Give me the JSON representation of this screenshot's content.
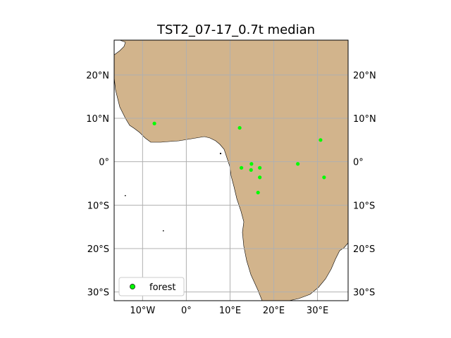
{
  "title": "TST2_07-17_0.7t median",
  "map": {
    "lon_range": [
      -16.5,
      37
    ],
    "lat_range": [
      -32,
      28
    ],
    "lon_ticks": [
      -10,
      0,
      10,
      20,
      30
    ],
    "lat_ticks": [
      20,
      10,
      0,
      -10,
      -20,
      -30
    ],
    "lon_tick_labels": [
      "10°W",
      "0°",
      "10°E",
      "20°E",
      "30°E"
    ],
    "lat_tick_labels": [
      "20°N",
      "10°N",
      "0°",
      "10°S",
      "20°S",
      "30°S"
    ],
    "land_color": "#d2b48c",
    "gridlines": true
  },
  "chart_data": {
    "type": "scatter",
    "series": [
      {
        "name": "forest",
        "color": "#00ff00",
        "points": [
          {
            "lon": -7.3,
            "lat": 8.8
          },
          {
            "lon": 12.2,
            "lat": 7.8
          },
          {
            "lon": 30.7,
            "lat": 5.0
          },
          {
            "lon": 14.9,
            "lat": -0.5
          },
          {
            "lon": 25.5,
            "lat": -0.5
          },
          {
            "lon": 12.6,
            "lat": -1.4
          },
          {
            "lon": 16.8,
            "lat": -1.4
          },
          {
            "lon": 14.8,
            "lat": -1.9
          },
          {
            "lon": 16.8,
            "lat": -3.6
          },
          {
            "lon": 31.5,
            "lat": -3.6
          },
          {
            "lon": 16.4,
            "lat": -7.1
          }
        ]
      }
    ]
  },
  "legend": {
    "label": "forest",
    "position": "lower-left"
  }
}
